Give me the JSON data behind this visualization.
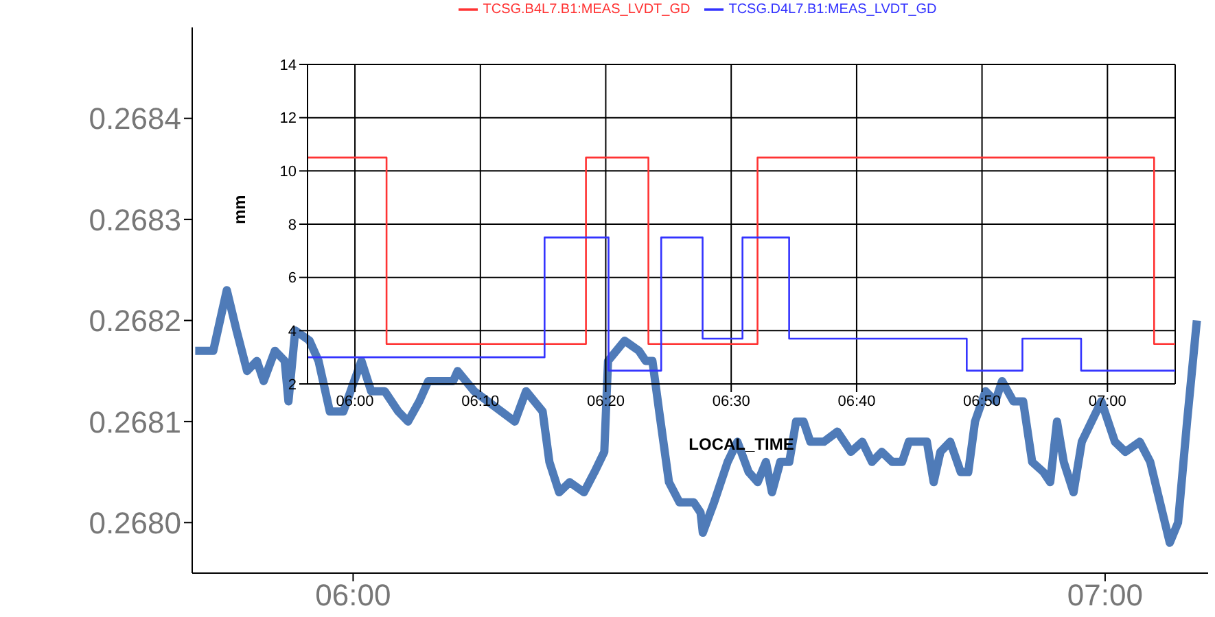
{
  "chart_data": [
    {
      "type": "line",
      "x": [
        5.79,
        5.814,
        5.832,
        5.845,
        5.859,
        5.872,
        5.881,
        5.896,
        5.909,
        5.914,
        5.923,
        5.942,
        5.954,
        5.969,
        5.987,
        6.011,
        6.024,
        6.042,
        6.051,
        6.06,
        6.073,
        6.088,
        6.1,
        6.115,
        6.133,
        6.139,
        6.161,
        6.179,
        6.197,
        6.215,
        6.23,
        6.252,
        6.261,
        6.274,
        6.288,
        6.307,
        6.321,
        6.334,
        6.339,
        6.361,
        6.38,
        6.389,
        6.398,
        6.407,
        6.42,
        6.434,
        6.453,
        6.462,
        6.465,
        6.48,
        6.498,
        6.511,
        6.526,
        6.538,
        6.549,
        6.557,
        6.568,
        6.58,
        6.589,
        6.599,
        6.608,
        6.626,
        6.644,
        6.662,
        6.677,
        6.69,
        6.703,
        6.717,
        6.73,
        6.739,
        6.75,
        6.763,
        6.772,
        6.781,
        6.794,
        6.808,
        6.818,
        6.827,
        6.841,
        6.854,
        6.863,
        6.878,
        6.891,
        6.903,
        6.918,
        6.927,
        6.936,
        6.945,
        6.958,
        6.969,
        6.982,
        6.995,
        7.013,
        7.027,
        7.046,
        7.06,
        7.073,
        7.086,
        7.097,
        7.109,
        7.122
      ],
      "series": [
        {
          "color": "#4f7bb8",
          "values": [
            0.26817,
            0.26817,
            0.26823,
            0.26819,
            0.26815,
            0.26816,
            0.26814,
            0.26817,
            0.26816,
            0.26812,
            0.26819,
            0.26818,
            0.26816,
            0.26811,
            0.26811,
            0.26816,
            0.26813,
            0.26813,
            0.26812,
            0.26811,
            0.2681,
            0.26812,
            0.26814,
            0.26814,
            0.26814,
            0.26815,
            0.26813,
            0.26812,
            0.26811,
            0.2681,
            0.26813,
            0.26811,
            0.26806,
            0.26803,
            0.26804,
            0.26803,
            0.26805,
            0.26807,
            0.26816,
            0.26818,
            0.26817,
            0.26816,
            0.26816,
            0.26811,
            0.26804,
            0.26802,
            0.26802,
            0.26801,
            0.26799,
            0.26802,
            0.26806,
            0.26808,
            0.26805,
            0.26804,
            0.26806,
            0.26803,
            0.26806,
            0.26806,
            0.2681,
            0.2681,
            0.26808,
            0.26808,
            0.26809,
            0.26807,
            0.26808,
            0.26806,
            0.26807,
            0.26806,
            0.26806,
            0.26808,
            0.26808,
            0.26808,
            0.26804,
            0.26807,
            0.26808,
            0.26805,
            0.26805,
            0.2681,
            0.26813,
            0.26812,
            0.26814,
            0.26812,
            0.26812,
            0.26806,
            0.26805,
            0.26804,
            0.2681,
            0.26806,
            0.26803,
            0.26808,
            0.2681,
            0.26812,
            0.26808,
            0.26807,
            0.26808,
            0.26806,
            0.26802,
            0.26798,
            0.268,
            0.2681,
            0.2682
          ]
        }
      ],
      "xlim": [
        5.786,
        7.137
      ],
      "xticks": [
        {
          "value": 6,
          "label": "06:00"
        },
        {
          "value": 7,
          "label": "07:00"
        }
      ],
      "ylim": [
        0.26795,
        0.26849
      ],
      "yticks": [
        {
          "value": 0.268,
          "label": "0.2680"
        },
        0.2681,
        0.2682,
        0.2683,
        0.2684
      ]
    },
    {
      "type": "step",
      "xlabel": "LOCAL_TIME",
      "ylabel": "mm",
      "legend": "top",
      "grid": true,
      "series": [
        {
          "name": "TCSG.B4L7.B1:MEAS_LVDT_GD",
          "color": "#ff3333",
          "x": [
            5.937,
            6.042,
            6.307,
            6.39,
            6.535,
            7.062,
            7.09
          ],
          "values": [
            10.5,
            3.5,
            10.5,
            3.5,
            10.5,
            3.5,
            3.5
          ]
        },
        {
          "name": "TCSG.D4L7.B1:MEAS_LVDT_GD",
          "color": "#3333ff",
          "x": [
            5.937,
            6.252,
            6.337,
            6.407,
            6.462,
            6.515,
            6.577,
            6.813,
            6.887,
            6.965,
            7.09
          ],
          "values": [
            3,
            7.5,
            2.5,
            7.5,
            3.7,
            7.5,
            3.7,
            2.5,
            3.7,
            2.5,
            2.5
          ]
        }
      ],
      "xlim": [
        5.937,
        7.09
      ],
      "xticks": [
        {
          "value": 6,
          "label": "06:00"
        },
        {
          "value": 6.1667,
          "label": "06:10"
        },
        {
          "value": 6.3333,
          "label": "06:20"
        },
        {
          "value": 6.5,
          "label": "06:30"
        },
        {
          "value": 6.6667,
          "label": "06:40"
        },
        {
          "value": 6.8333,
          "label": "06:50"
        },
        {
          "value": 7,
          "label": "07:00"
        }
      ],
      "ylim": [
        2,
        14
      ],
      "yticks": [
        2,
        4,
        6,
        8,
        10,
        12,
        14
      ]
    }
  ]
}
